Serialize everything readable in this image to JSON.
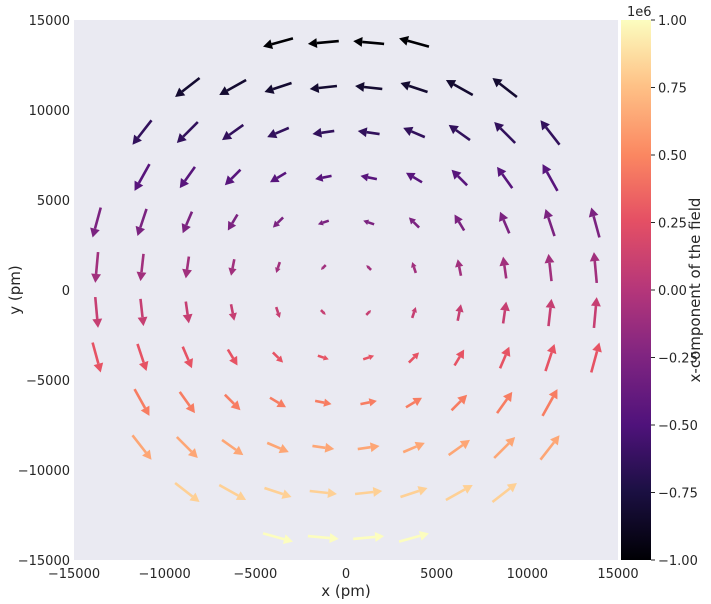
{
  "chart_data": {
    "type": "quiver",
    "xlabel": "x (pm)",
    "ylabel": "y (pm)",
    "xlim": [
      -15000,
      15000
    ],
    "ylim": [
      -15000,
      15000
    ],
    "x_ticks": [
      "−15000",
      "−10000",
      "−5000",
      "0",
      "5000",
      "10000",
      "15000"
    ],
    "y_ticks": [
      "−15000",
      "−10000",
      "−5000",
      "0",
      "5000",
      "10000",
      "15000"
    ],
    "grid": false,
    "background": "#eaeaf2",
    "colormap": "magma",
    "colorbar": {
      "label": "x-component of the field",
      "range": [
        -1.0,
        1.0
      ],
      "offset_text": "1e6",
      "ticks": [
        "−1.00",
        "−0.75",
        "−0.50",
        "−0.25",
        "0.00",
        "0.25",
        "0.50",
        "0.75",
        "1.00"
      ]
    },
    "grid_x": [
      -13750,
      -11250,
      -8750,
      -6250,
      -3750,
      -1250,
      1250,
      3750,
      6250,
      8750,
      11250,
      13750
    ],
    "grid_y": [
      -13750,
      -11250,
      -8750,
      -6250,
      -3750,
      -1250,
      1250,
      3750,
      6250,
      8750,
      11250,
      13750
    ],
    "mask_radius": 15000,
    "field": "circulating vector field; u (x-component) = -y, v = x, arrow color = u"
  }
}
